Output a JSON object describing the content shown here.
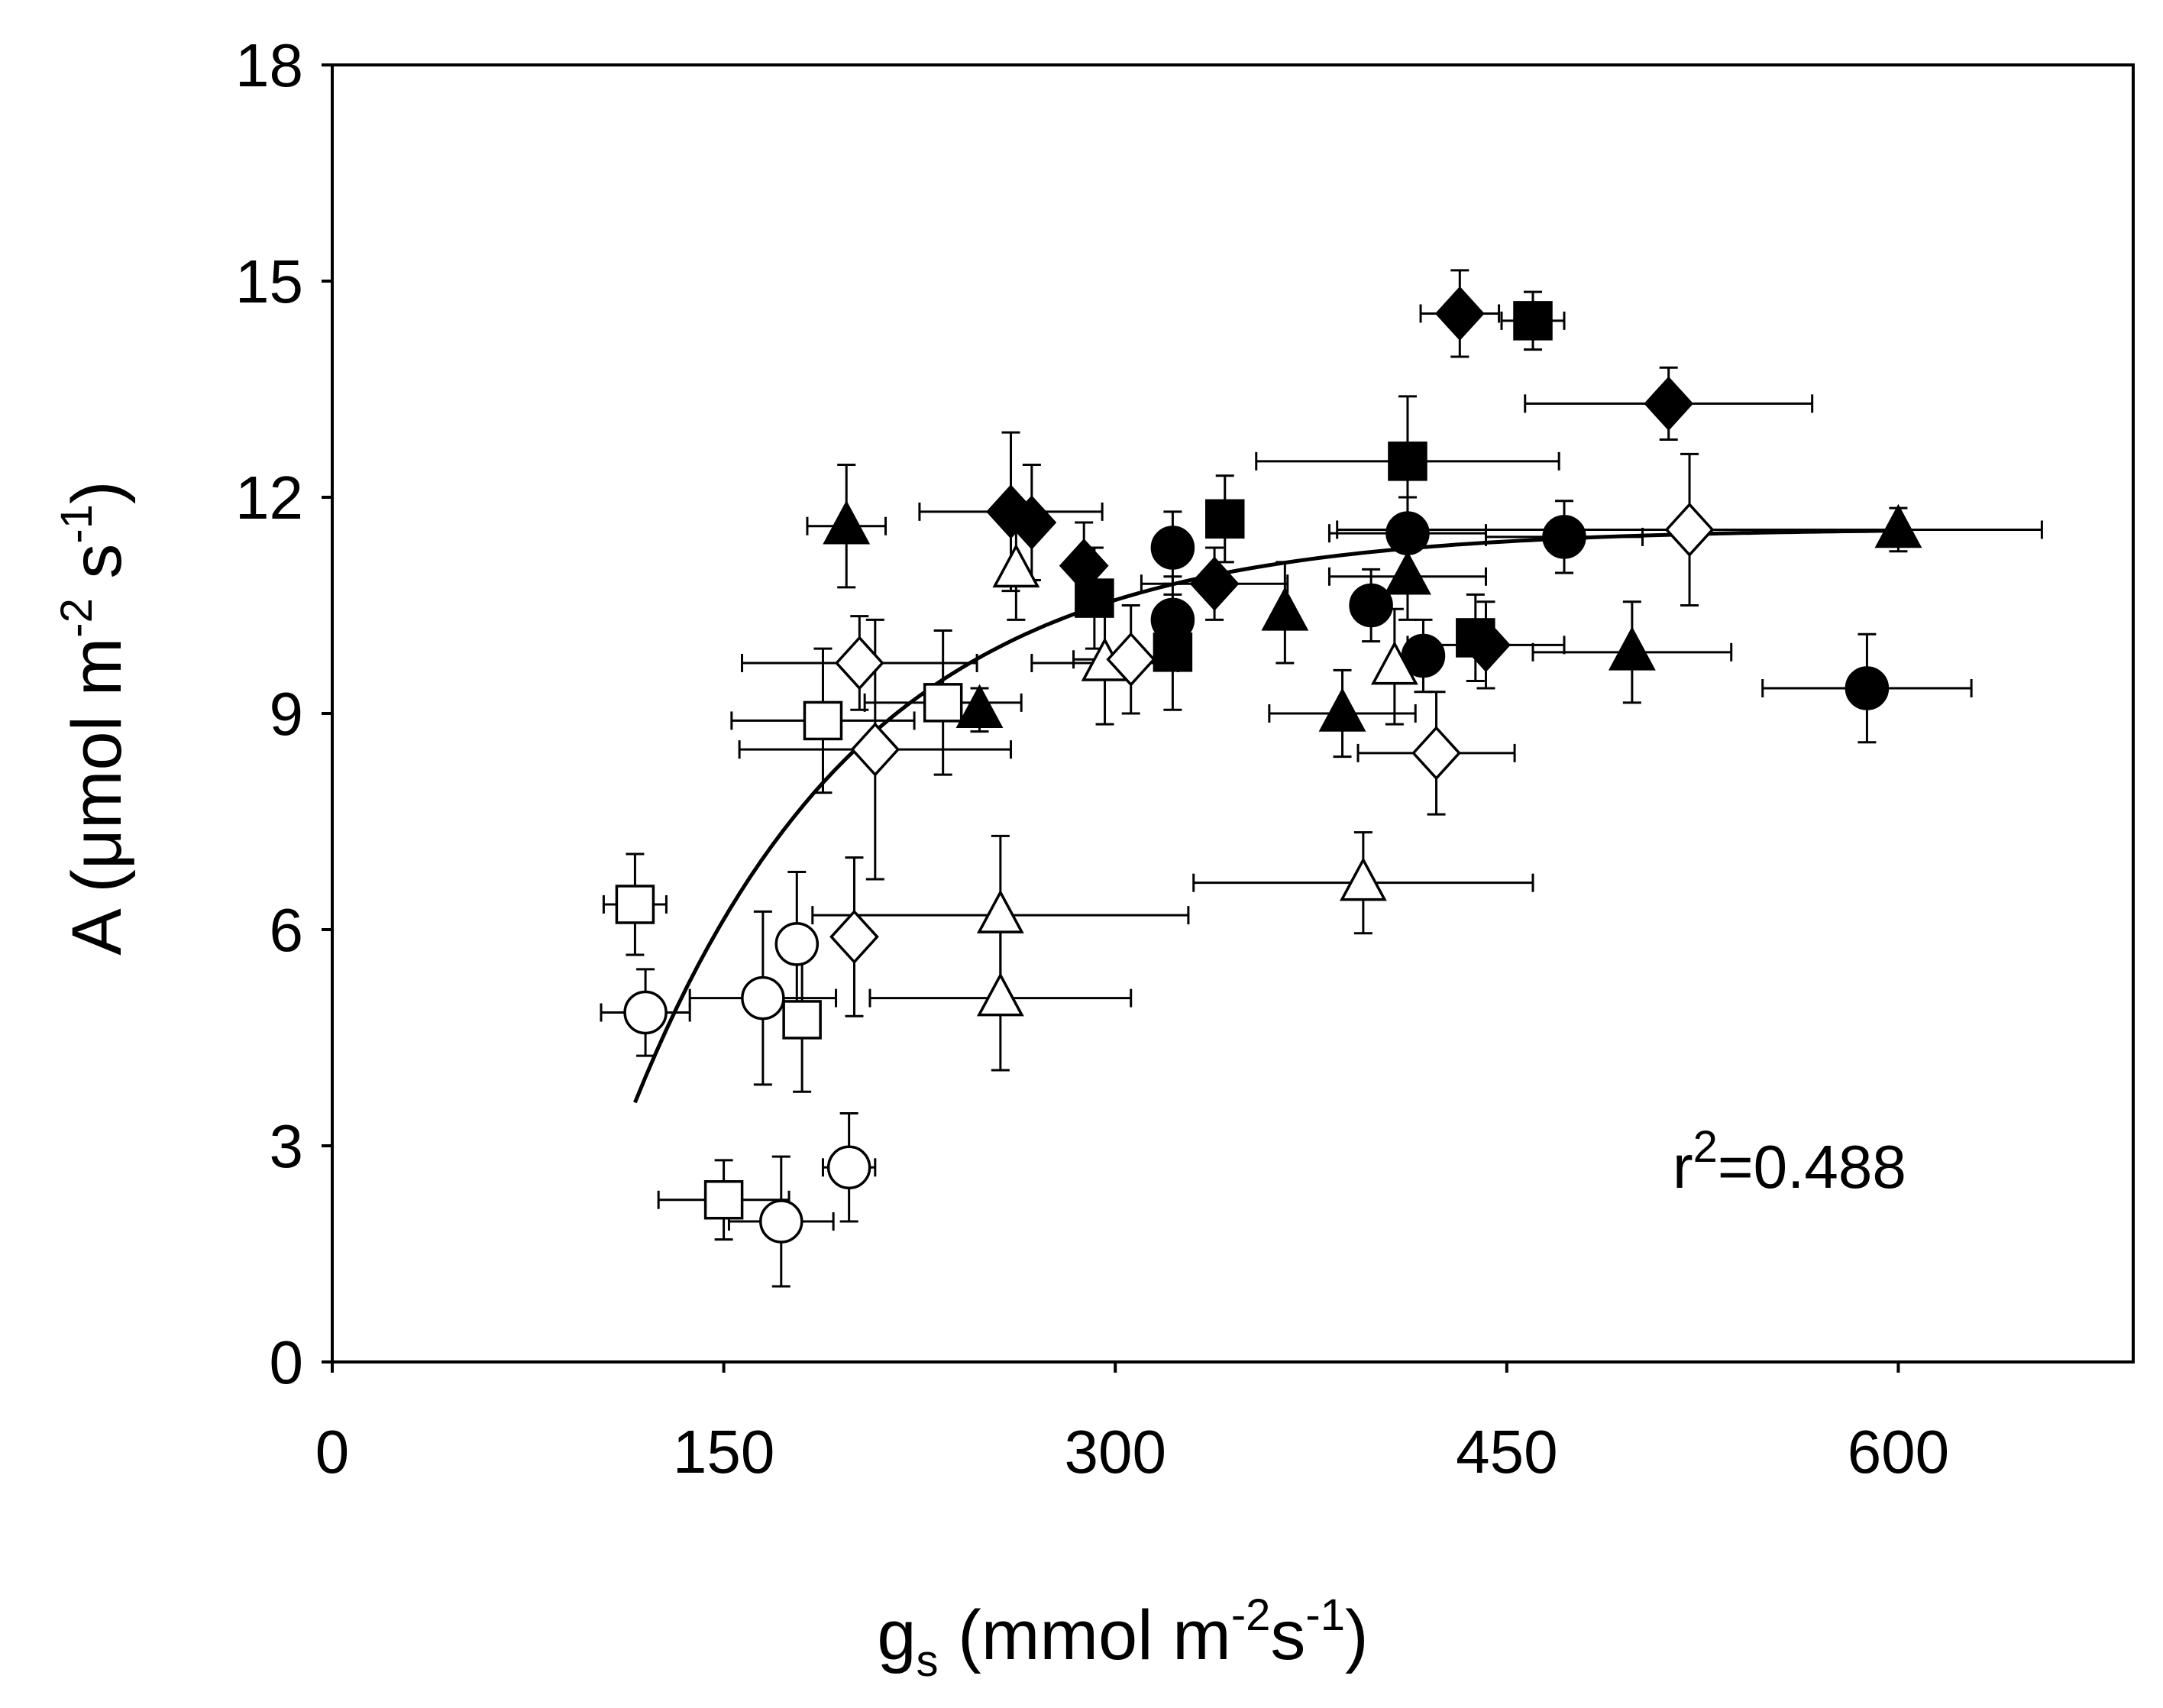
{
  "chart_data": {
    "type": "scatter",
    "title": "",
    "xlabel": {
      "main": "g",
      "sub": "s",
      "unit_open": " (mmol m",
      "exp1": "-2",
      "mid": "s",
      "exp2": "-1",
      "close": ")"
    },
    "ylabel": {
      "main": "A (",
      "mu": "μ",
      "unit": "mol m",
      "exp1": "-2",
      "mid": " s",
      "exp2": "-1",
      "close": ")"
    },
    "xlim": [
      0,
      690
    ],
    "ylim": [
      0,
      18
    ],
    "xticks": [
      0,
      150,
      300,
      450,
      600
    ],
    "yticks": [
      0,
      3,
      6,
      9,
      12,
      15,
      18
    ],
    "xtick_labels": [
      "0",
      "150",
      "300",
      "450",
      "600"
    ],
    "ytick_labels": [
      "0",
      "3",
      "6",
      "9",
      "12",
      "15",
      "18"
    ],
    "annotation": {
      "base": "r",
      "exp": "2",
      "rest": "=0.488"
    },
    "fit": {
      "type": "saturating",
      "x_range": [
        116,
        600
      ],
      "a": 11.57,
      "b": 0.0113,
      "x0": 83
    },
    "series": [
      {
        "name": "filled-circle",
        "marker": "circle",
        "fill": "#000000",
        "points": [
          {
            "x": 322,
            "y": 11.3,
            "xe": 0,
            "ye": 0.5
          },
          {
            "x": 322,
            "y": 10.3,
            "xe": 0,
            "ye": 0.6
          },
          {
            "x": 398,
            "y": 10.5,
            "xe": 0,
            "ye": 0.5
          },
          {
            "x": 412,
            "y": 11.5,
            "xe": 30,
            "ye": 0.5
          },
          {
            "x": 418,
            "y": 9.8,
            "xe": 0,
            "ye": 0.5
          },
          {
            "x": 472,
            "y": 11.45,
            "xe": 30,
            "ye": 0.5
          },
          {
            "x": 588,
            "y": 9.35,
            "xe": 40,
            "ye": 0.75
          }
        ]
      },
      {
        "name": "filled-square",
        "marker": "square",
        "fill": "#000000",
        "points": [
          {
            "x": 292,
            "y": 10.6,
            "xe": 0,
            "ye": 0.7
          },
          {
            "x": 322,
            "y": 9.85,
            "xe": 0,
            "ye": 0.8
          },
          {
            "x": 342,
            "y": 11.7,
            "xe": 0,
            "ye": 0.6
          },
          {
            "x": 412,
            "y": 12.5,
            "xe": 58,
            "ye": 0.9
          },
          {
            "x": 438,
            "y": 10.05,
            "xe": 0,
            "ye": 0.6
          },
          {
            "x": 460,
            "y": 14.45,
            "xe": 12,
            "ye": 0.4
          }
        ]
      },
      {
        "name": "filled-triangle",
        "marker": "triangle",
        "fill": "#000000",
        "points": [
          {
            "x": 197,
            "y": 11.6,
            "xe": 15,
            "ye": 0.85
          },
          {
            "x": 248,
            "y": 9.05,
            "xe": 0,
            "ye": 0.3
          },
          {
            "x": 365,
            "y": 10.4,
            "xe": 0,
            "ye": 0.7
          },
          {
            "x": 387,
            "y": 9.0,
            "xe": 28,
            "ye": 0.6
          },
          {
            "x": 412,
            "y": 10.9,
            "xe": 30,
            "ye": 0.6
          },
          {
            "x": 498,
            "y": 9.85,
            "xe": 38,
            "ye": 0.7
          },
          {
            "x": 600,
            "y": 11.55,
            "xe": 0,
            "ye": 0.3
          }
        ]
      },
      {
        "name": "filled-diamond",
        "marker": "diamond",
        "fill": "#000000",
        "points": [
          {
            "x": 260,
            "y": 11.8,
            "xe": 35,
            "ye": 1.1
          },
          {
            "x": 268,
            "y": 11.65,
            "xe": 0,
            "ye": 0.8
          },
          {
            "x": 288,
            "y": 11.05,
            "xe": 0,
            "ye": 0.6
          },
          {
            "x": 338,
            "y": 10.8,
            "xe": 28,
            "ye": 0.5
          },
          {
            "x": 442,
            "y": 9.95,
            "xe": 30,
            "ye": 0.6
          },
          {
            "x": 432,
            "y": 14.55,
            "xe": 15,
            "ye": 0.6
          },
          {
            "x": 512,
            "y": 13.3,
            "xe": 55,
            "ye": 0.5
          }
        ]
      },
      {
        "name": "open-circle",
        "marker": "circle",
        "fill": "#ffffff",
        "points": [
          {
            "x": 120,
            "y": 4.85,
            "xe": 17,
            "ye": 0.6
          },
          {
            "x": 165,
            "y": 5.05,
            "xe": 28,
            "ye": 1.2
          },
          {
            "x": 178,
            "y": 5.8,
            "xe": 0,
            "ye": 1.0
          },
          {
            "x": 172,
            "y": 1.95,
            "xe": 20,
            "ye": 0.9
          },
          {
            "x": 198,
            "y": 2.7,
            "xe": 10,
            "ye": 0.75
          }
        ]
      },
      {
        "name": "open-square",
        "marker": "square",
        "fill": "#ffffff",
        "points": [
          {
            "x": 116,
            "y": 6.35,
            "xe": 12,
            "ye": 0.7
          },
          {
            "x": 150,
            "y": 2.25,
            "xe": 25,
            "ye": 0.55
          },
          {
            "x": 180,
            "y": 4.75,
            "xe": 0,
            "ye": 1.0
          },
          {
            "x": 188,
            "y": 8.9,
            "xe": 35,
            "ye": 1.0
          },
          {
            "x": 234,
            "y": 9.15,
            "xe": 30,
            "ye": 1.0
          }
        ]
      },
      {
        "name": "open-triangle",
        "marker": "triangle",
        "fill": "#ffffff",
        "points": [
          {
            "x": 262,
            "y": 11.0,
            "xe": 0,
            "ye": 0.7
          },
          {
            "x": 256,
            "y": 6.2,
            "xe": 72,
            "ye": 1.1
          },
          {
            "x": 256,
            "y": 5.05,
            "xe": 50,
            "ye": 1.0
          },
          {
            "x": 296,
            "y": 9.7,
            "xe": 28,
            "ye": 0.85
          },
          {
            "x": 395,
            "y": 6.65,
            "xe": 65,
            "ye": 0.7
          },
          {
            "x": 407,
            "y": 9.65,
            "xe": 0,
            "ye": 0.8
          }
        ]
      },
      {
        "name": "open-diamond",
        "marker": "diamond",
        "fill": "#ffffff",
        "points": [
          {
            "x": 202,
            "y": 9.7,
            "xe": 45,
            "ye": 0.65
          },
          {
            "x": 208,
            "y": 8.5,
            "xe": 52,
            "ye": 1.8
          },
          {
            "x": 200,
            "y": 5.9,
            "xe": 0,
            "ye": 1.1
          },
          {
            "x": 306,
            "y": 9.75,
            "xe": 22,
            "ye": 0.75
          },
          {
            "x": 423,
            "y": 8.45,
            "xe": 30,
            "ye": 0.85
          },
          {
            "x": 520,
            "y": 11.55,
            "xe": 135,
            "ye": 1.05
          }
        ]
      }
    ]
  }
}
